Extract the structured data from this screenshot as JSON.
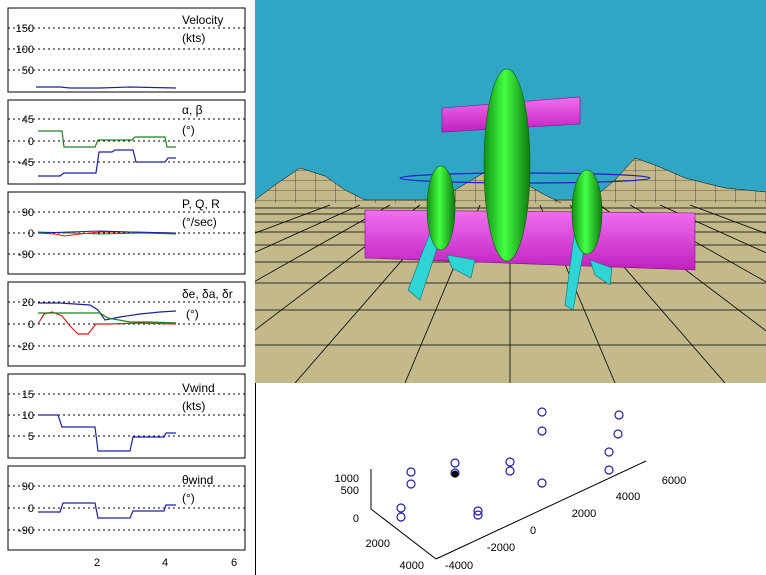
{
  "panels": [
    {
      "id": "velocity",
      "label": "Velocity",
      "unit": "(kts)",
      "ticks": [
        "150",
        "100",
        "50"
      ]
    },
    {
      "id": "alpha-beta",
      "label": "α, β",
      "unit": "(°)",
      "ticks": [
        "45",
        "0",
        "-45"
      ]
    },
    {
      "id": "pqr",
      "label": "P, Q, R",
      "unit": "(°/sec)",
      "ticks": [
        "90",
        "0",
        "-90"
      ]
    },
    {
      "id": "deltas",
      "label": "δe, δa, δr",
      "unit": "(°)",
      "ticks": [
        "20",
        "10",
        "0",
        "-20"
      ]
    },
    {
      "id": "vwind",
      "label": "Vwind",
      "unit": "(kts)",
      "ticks": [
        "15",
        "10",
        "5"
      ]
    },
    {
      "id": "thetawind",
      "label": "θwind",
      "unit": "(°)",
      "ticks": [
        "90",
        "0",
        "-90"
      ]
    }
  ],
  "x_axis_ticks": [
    "2",
    "4",
    "6"
  ],
  "scatter": {
    "z_ticks": [
      "1000",
      "500",
      "0"
    ],
    "y_ticks": [
      "2000",
      "4000"
    ],
    "x_ticks": [
      "-4000",
      "-2000",
      "0",
      "2000",
      "4000",
      "6000"
    ]
  },
  "colors": {
    "sky": "#2fa6c4",
    "ground": "#c4b98a",
    "fuselage": "#22dd22",
    "wing": "#e040e0",
    "tail": "#2fd4d4",
    "series_blue": "#2020a0",
    "series_green": "#208020",
    "series_red": "#d02020",
    "marker": "#2020a0"
  }
}
